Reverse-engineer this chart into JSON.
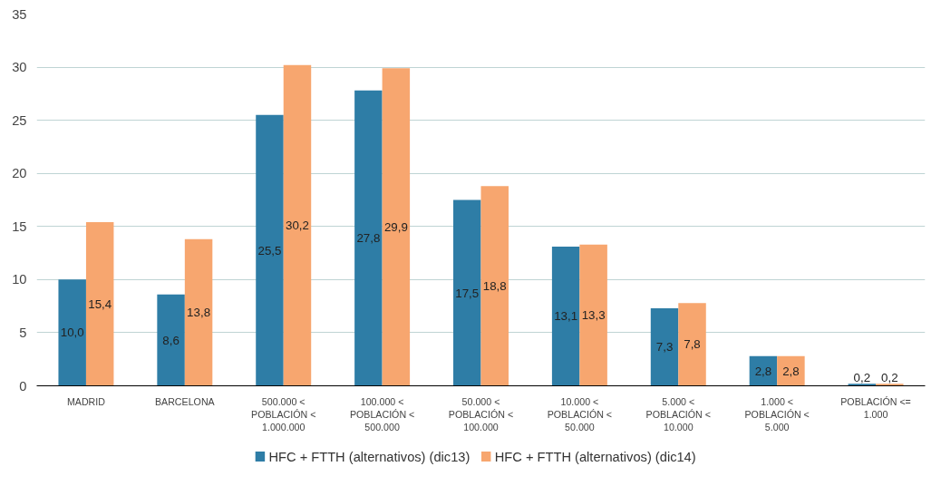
{
  "chart_data": {
    "type": "bar",
    "categories": [
      "MADRID",
      "BARCELONA",
      "500.000 < POBLACIÓN < 1.000.000",
      "100.000 < POBLACIÓN < 500.000",
      "50.000 < POBLACIÓN < 100.000",
      "10.000 < POBLACIÓN < 50.000",
      "5.000 < POBLACIÓN < 10.000",
      "1.000 < POBLACIÓN < 5.000",
      "POBLACIÓN <= 1.000"
    ],
    "series": [
      {
        "name": "HFC + FTTH (alternativos) (dic13)",
        "color": "#2e7da6",
        "values": [
          10.0,
          8.6,
          25.5,
          27.8,
          17.5,
          13.1,
          7.3,
          2.8,
          0.2
        ],
        "value_labels": [
          "10,0",
          "8,6",
          "25,5",
          "27,8",
          "17,5",
          "13,1",
          "7,3",
          "2,8",
          "0,2"
        ]
      },
      {
        "name": "HFC + FTTH (alternativos) (dic14)",
        "color": "#f7a66f",
        "values": [
          15.4,
          13.8,
          30.2,
          29.9,
          18.8,
          13.3,
          7.8,
          2.8,
          0.2
        ],
        "value_labels": [
          "15,4",
          "13,8",
          "30,2",
          "29,9",
          "18,8",
          "13,3",
          "7,8",
          "2,8",
          "0,2"
        ]
      }
    ],
    "ylim": [
      0,
      35
    ],
    "yticks": [
      0,
      5,
      10,
      15,
      20,
      25,
      30,
      35
    ],
    "grid": "y",
    "legend": "bottom"
  }
}
